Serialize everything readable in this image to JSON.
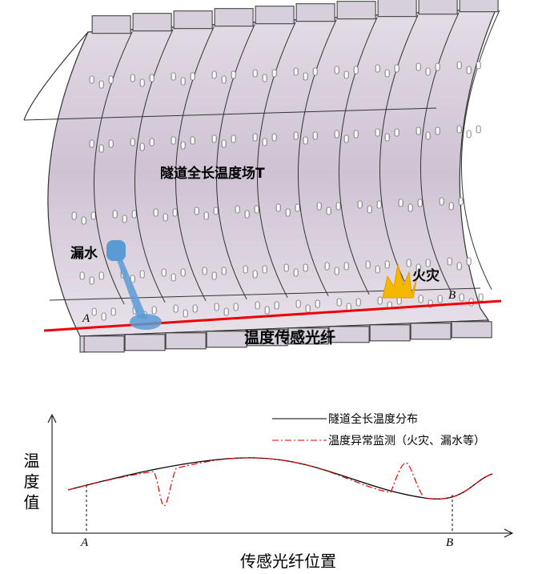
{
  "illustration": {
    "field_label": "隧道全长温度场T",
    "leak_label": "漏水",
    "fire_label": "火灾",
    "point_a": "A",
    "point_b": "B",
    "fiber_label": "温度传感光纤"
  },
  "chart": {
    "legend": [
      "隧道全长温度分布",
      "温度异常监测（火灾、漏水等）"
    ],
    "y_label": "温度值",
    "x_label": "传感光纤位置",
    "x_markers": [
      "A",
      "B"
    ]
  }
}
